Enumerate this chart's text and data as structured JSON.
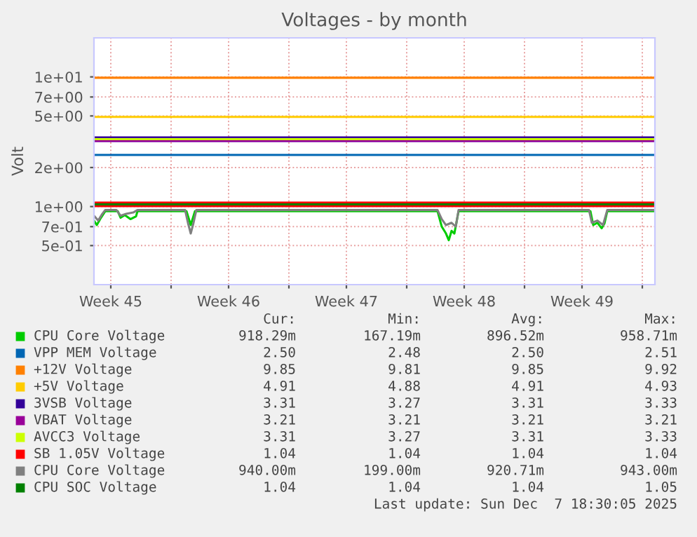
{
  "chart_data": {
    "type": "line",
    "title": "Voltages - by month",
    "ylabel": "Volt",
    "log": "y",
    "grid": true,
    "legend": "bottom",
    "xlim": [
      "2025-11-04T10:00",
      "2025-12-07T18:00"
    ],
    "xticks": [
      {
        "value": "2025-11-05T10:00",
        "label": "Week 45"
      },
      {
        "value": "2025-11-12T10:00",
        "label": "Week 46"
      },
      {
        "value": "2025-11-19T10:00",
        "label": "Week 47"
      },
      {
        "value": "2025-11-26T10:00",
        "label": "Week 48"
      },
      {
        "value": "2025-12-03T10:00",
        "label": "Week 49"
      },
      {
        "value": "2025-11-09T00:00",
        "label": null
      },
      {
        "value": "2025-11-16T00:00",
        "label": null
      },
      {
        "value": "2025-11-23T00:00",
        "label": null
      },
      {
        "value": "2025-11-30T00:00",
        "label": null
      },
      {
        "value": "2025-12-07T00:00",
        "label": null
      }
    ],
    "ylim": [
      0.25,
      20
    ],
    "yticks": [
      {
        "value": 0.5,
        "label": "5e-01"
      },
      {
        "value": 0.7,
        "label": "7e-01"
      },
      {
        "value": 1,
        "label": "1e+00"
      },
      {
        "value": 2,
        "label": "2e+00"
      },
      {
        "value": 5,
        "label": "5e+00"
      },
      {
        "value": 7,
        "label": "7e+00"
      },
      {
        "value": 10,
        "label": "1e+01"
      }
    ],
    "series": [
      {
        "name": "CPU Core Voltage",
        "color": "#00cc00",
        "x": [
          "2025-11-04T10:00",
          "2025-11-04T14:00",
          "2025-11-04T20:00",
          "2025-11-05T02:00",
          "2025-11-05T20:00",
          "2025-11-06T00:00",
          "2025-11-06T06:00",
          "2025-11-06T14:00",
          "2025-11-06T22:00",
          "2025-11-07T00:00",
          "2025-11-09T22:00",
          "2025-11-10T04:00",
          "2025-11-10T10:00",
          "2025-11-24T20:00",
          "2025-11-25T02:00",
          "2025-11-25T08:00",
          "2025-11-25T12:00",
          "2025-11-25T16:00",
          "2025-11-25T20:00",
          "2025-11-26T02:00",
          "2025-12-03T22:00",
          "2025-12-04T02:00",
          "2025-12-04T08:00",
          "2025-12-04T14:00",
          "2025-12-04T18:00",
          "2025-12-04T22:00",
          "2025-12-07T18:00"
        ],
        "values": [
          0.78,
          0.72,
          0.82,
          0.92,
          0.92,
          0.82,
          0.86,
          0.8,
          0.84,
          0.92,
          0.92,
          0.72,
          0.92,
          0.92,
          0.7,
          0.62,
          0.55,
          0.65,
          0.62,
          0.92,
          0.92,
          0.72,
          0.75,
          0.68,
          0.74,
          0.92,
          0.92
        ]
      },
      {
        "name": "VPP MEM Voltage",
        "color": "#0066b3",
        "x": [
          "2025-11-04T10:00",
          "2025-12-07T18:00"
        ],
        "values": [
          2.5,
          2.5
        ]
      },
      {
        "name": "+12V Voltage",
        "color": "#ff8000",
        "x": [
          "2025-11-04T10:00",
          "2025-12-07T18:00"
        ],
        "values": [
          9.85,
          9.85
        ]
      },
      {
        "name": "+5V Voltage",
        "color": "#ffcc00",
        "x": [
          "2025-11-04T10:00",
          "2025-12-07T18:00"
        ],
        "values": [
          4.91,
          4.91
        ]
      },
      {
        "name": "3VSB Voltage",
        "color": "#330099",
        "x": [
          "2025-11-04T10:00",
          "2025-12-07T18:00"
        ],
        "values": [
          3.31,
          3.31
        ]
      },
      {
        "name": "VBAT Voltage",
        "color": "#990099",
        "x": [
          "2025-11-04T10:00",
          "2025-12-07T18:00"
        ],
        "values": [
          3.21,
          3.21
        ]
      },
      {
        "name": "AVCC3 Voltage",
        "color": "#ccff00",
        "x": [
          "2025-11-04T10:00",
          "2025-12-07T18:00"
        ],
        "values": [
          3.31,
          3.31
        ]
      },
      {
        "name": "SB 1.05V Voltage",
        "color": "#ff0000",
        "x": [
          "2025-11-04T10:00",
          "2025-12-07T18:00"
        ],
        "values": [
          1.04,
          1.04
        ]
      },
      {
        "name": "CPU Core Voltage",
        "color": "#808080",
        "x": [
          "2025-11-04T10:00",
          "2025-11-04T16:00",
          "2025-11-04T22:00",
          "2025-11-05T02:00",
          "2025-11-05T18:00",
          "2025-11-06T00:00",
          "2025-11-06T08:00",
          "2025-11-06T18:00",
          "2025-11-07T00:00",
          "2025-11-09T20:00",
          "2025-11-10T00:00",
          "2025-11-10T04:00",
          "2025-11-10T08:00",
          "2025-11-10T12:00",
          "2025-11-24T20:00",
          "2025-11-25T02:00",
          "2025-11-25T08:00",
          "2025-11-25T16:00",
          "2025-11-25T22:00",
          "2025-11-26T02:00",
          "2025-12-03T20:00",
          "2025-12-04T00:00",
          "2025-12-04T08:00",
          "2025-12-04T16:00",
          "2025-12-04T22:00",
          "2025-12-07T18:00"
        ],
        "values": [
          0.85,
          0.78,
          0.88,
          0.94,
          0.94,
          0.85,
          0.88,
          0.9,
          0.94,
          0.94,
          0.75,
          0.62,
          0.75,
          0.94,
          0.94,
          0.8,
          0.72,
          0.75,
          0.7,
          0.94,
          0.94,
          0.75,
          0.78,
          0.72,
          0.94,
          0.94
        ]
      },
      {
        "name": "CPU SOC Voltage",
        "color": "#008000",
        "x": [
          "2025-11-04T10:00",
          "2025-12-07T18:00"
        ],
        "values": [
          1.04,
          1.04
        ]
      }
    ],
    "annotations": [
      "Cur:",
      "Min:",
      "Avg:",
      "Max:",
      "918.29m",
      "167.19m",
      "896.52m",
      "958.71m",
      "2.50",
      "2.48",
      "2.50",
      "2.51",
      "9.85",
      "9.81",
      "9.85",
      "9.92",
      "4.91",
      "4.88",
      "4.91",
      "4.93",
      "3.31",
      "3.27",
      "3.31",
      "3.33",
      "3.21",
      "3.21",
      "3.21",
      "3.21",
      "3.31",
      "3.27",
      "3.31",
      "3.33",
      "1.04",
      "1.04",
      "1.04",
      "1.04",
      "940.00m",
      "199.00m",
      "920.71m",
      "943.00m",
      "1.04",
      "1.04",
      "1.04",
      "1.05",
      "Last update: Sun Dec  7 18:30:05 2025"
    ]
  }
}
